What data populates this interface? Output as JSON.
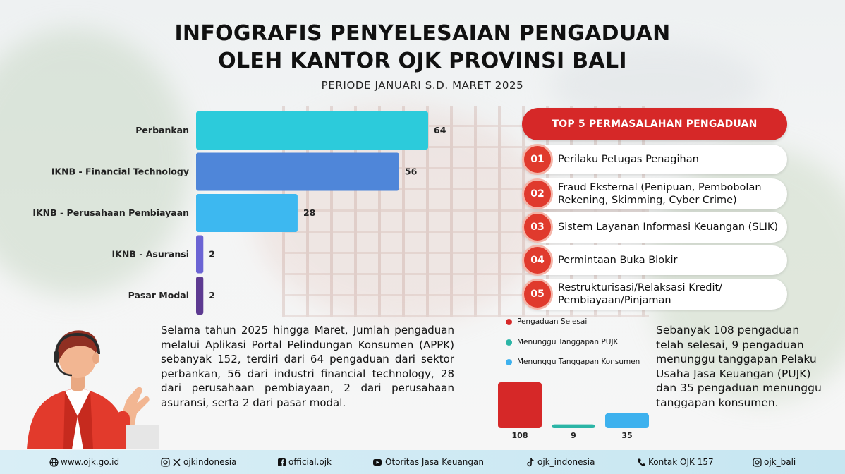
{
  "header": {
    "title_line1": "INFOGRAFIS PENYELESAIAN PENGADUAN",
    "title_line2": "OLEH KANTOR OJK PROVINSI BALI",
    "subtitle": "PERIODE JANUARI S.D. MARET 2025"
  },
  "chart_data": [
    {
      "type": "bar",
      "orientation": "horizontal",
      "categories": [
        "Perbankan",
        "IKNB - Financial Technology",
        "IKNB - Perusahaan Pembiayaan",
        "IKNB - Asuransi",
        "Pasar Modal"
      ],
      "values": [
        64,
        56,
        28,
        2,
        2
      ],
      "value_labels": [
        "64",
        "56",
        "28",
        "2",
        "2"
      ],
      "colors": [
        "#2ccbdb",
        "#4f86d9",
        "#3db8f0",
        "#6b64d4",
        "#5d3a91"
      ],
      "xlim": [
        0,
        64
      ],
      "grid": false
    },
    {
      "type": "bar",
      "categories": [
        "Pengaduan Selesai",
        "Menunggu Tanggapan PUJK",
        "Menunggu Tanggapan Konsumen"
      ],
      "values": [
        108,
        9,
        35
      ],
      "value_labels": [
        "108",
        "9",
        "35"
      ],
      "colors": [
        "#d62828",
        "#2bb5a6",
        "#3db1ee"
      ],
      "legend": "top",
      "grid": false
    }
  ],
  "top5": {
    "heading": "TOP 5 PERMASALAHAN PENGADUAN",
    "items": [
      {
        "num": "01",
        "text": "Perilaku Petugas Penagihan"
      },
      {
        "num": "02",
        "text": "Fraud Eksternal (Penipuan, Pembobolan Rekening, Skimming, Cyber Crime)"
      },
      {
        "num": "03",
        "text": "Sistem Layanan Informasi Keuangan (SLIK)"
      },
      {
        "num": "04",
        "text": "Permintaan Buka Blokir"
      },
      {
        "num": "05",
        "text": "Restrukturisasi/Relaksasi Kredit/ Pembiayaan/Pinjaman"
      }
    ]
  },
  "summary_left": "Selama tahun 2025 hingga Maret, Jumlah pengaduan melalui Aplikasi Portal Pelindungan Konsumen (APPK) sebanyak 152, terdiri dari 64 pengaduan dari sektor perbankan, 56 dari industri financial technology, 28 dari perusahaan pembiayaan, 2 dari perusahaan asuransi, serta 2 dari pasar modal.",
  "summary_right": "Sebanyak 108 pengaduan telah selesai, 9 pengaduan menunggu tanggapan Pelaku Usaha Jasa Keuangan (PUJK) dan 35 pengaduan menunggu tanggapan konsumen.",
  "footer": {
    "website": "www.ojk.go.id",
    "instagram_x": "ojkindonesia",
    "facebook": "official.ojk",
    "youtube": "Otoritas Jasa Keuangan",
    "tiktok": "ojk_indonesia",
    "phone": "Kontak OJK 157",
    "instagram_bali": "ojk_bali"
  }
}
